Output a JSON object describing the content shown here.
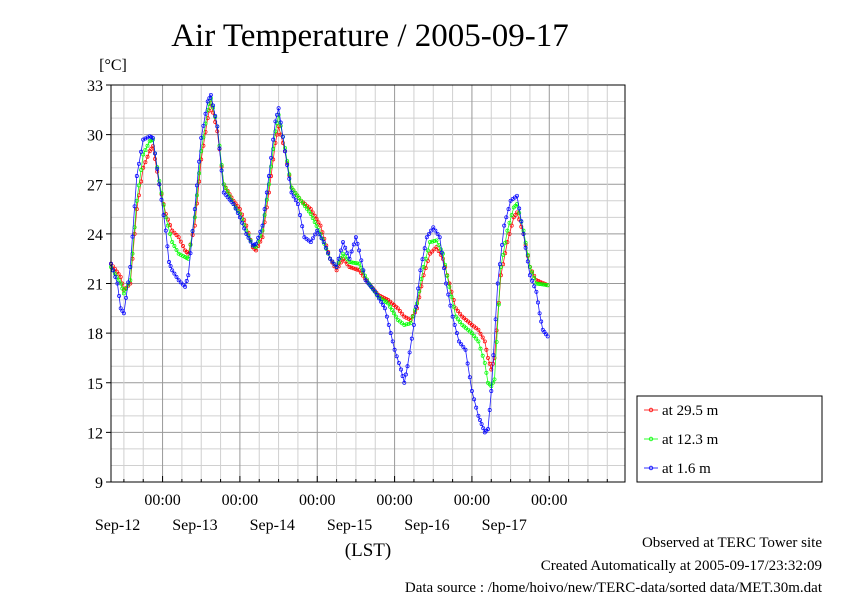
{
  "chart_data": {
    "type": "scatter",
    "title": "Air Temperature / 2005-09-17",
    "ylabel": "[°C]",
    "xlabel": "(LST)",
    "ylim": [
      9,
      33
    ],
    "yticks": [
      9,
      12,
      15,
      18,
      21,
      24,
      27,
      30,
      33
    ],
    "xlim": [
      "2005-09-11T08:00",
      "2005-09-17T23:30"
    ],
    "xticks": [
      {
        "time": "2005-09-12T00:00",
        "time_label": "00:00",
        "date_label": "Sep-12"
      },
      {
        "time": "2005-09-13T00:00",
        "time_label": "00:00",
        "date_label": "Sep-13"
      },
      {
        "time": "2005-09-14T00:00",
        "time_label": "00:00",
        "date_label": "Sep-14"
      },
      {
        "time": "2005-09-15T00:00",
        "time_label": "00:00",
        "date_label": "Sep-15"
      },
      {
        "time": "2005-09-16T00:00",
        "time_label": "00:00",
        "date_label": "Sep-16"
      },
      {
        "time": "2005-09-17T00:00",
        "time_label": "00:00",
        "date_label": "Sep-17"
      }
    ],
    "grid": true,
    "legend_position": "right-bottom",
    "series": [
      {
        "name": "at 29.5 m",
        "color": "#ff0000",
        "points": [
          [
            "2005-09-11T08:00",
            22.2
          ],
          [
            "2005-09-11T11:00",
            21.4
          ],
          [
            "2005-09-11T12:00",
            20.6
          ],
          [
            "2005-09-11T14:00",
            21.0
          ],
          [
            "2005-09-11T16:00",
            25.5
          ],
          [
            "2005-09-11T18:00",
            28.0
          ],
          [
            "2005-09-11T20:00",
            29.0
          ],
          [
            "2005-09-11T21:00",
            29.3
          ],
          [
            "2005-09-11T23:00",
            27.0
          ],
          [
            "2005-09-12T01:00",
            25.2
          ],
          [
            "2005-09-12T03:00",
            24.2
          ],
          [
            "2005-09-12T05:00",
            23.8
          ],
          [
            "2005-09-12T07:00",
            23.0
          ],
          [
            "2005-09-12T08:00",
            22.8
          ],
          [
            "2005-09-12T10:00",
            24.5
          ],
          [
            "2005-09-12T12:00",
            28.5
          ],
          [
            "2005-09-12T14:00",
            31.0
          ],
          [
            "2005-09-12T15:00",
            31.9
          ],
          [
            "2005-09-12T17:00",
            30.2
          ],
          [
            "2005-09-12T19:00",
            27.0
          ],
          [
            "2005-09-12T22:00",
            26.0
          ],
          [
            "2005-09-13T00:00",
            25.5
          ],
          [
            "2005-09-13T02:00",
            24.5
          ],
          [
            "2005-09-13T04:00",
            23.2
          ],
          [
            "2005-09-13T05:00",
            23.0
          ],
          [
            "2005-09-13T07:00",
            23.8
          ],
          [
            "2005-09-13T09:00",
            26.5
          ],
          [
            "2005-09-13T11:00",
            29.5
          ],
          [
            "2005-09-13T12:00",
            30.5
          ],
          [
            "2005-09-13T14:00",
            29.0
          ],
          [
            "2005-09-13T16:00",
            26.8
          ],
          [
            "2005-09-13T19:00",
            26.0
          ],
          [
            "2005-09-13T22:00",
            25.5
          ],
          [
            "2005-09-14T01:00",
            24.5
          ],
          [
            "2005-09-14T04:00",
            22.5
          ],
          [
            "2005-09-14T06:00",
            21.8
          ],
          [
            "2005-09-14T08:00",
            22.5
          ],
          [
            "2005-09-14T10:00",
            22.0
          ],
          [
            "2005-09-14T13:00",
            21.8
          ],
          [
            "2005-09-14T16:00",
            21.0
          ],
          [
            "2005-09-14T19:00",
            20.3
          ],
          [
            "2005-09-14T22:00",
            20.0
          ],
          [
            "2005-09-15T01:00",
            19.5
          ],
          [
            "2005-09-15T03:00",
            19.0
          ],
          [
            "2005-09-15T05:00",
            18.8
          ],
          [
            "2005-09-15T07:00",
            19.5
          ],
          [
            "2005-09-15T09:00",
            21.5
          ],
          [
            "2005-09-15T11:00",
            22.8
          ],
          [
            "2005-09-15T13:00",
            23.2
          ],
          [
            "2005-09-15T15:00",
            22.5
          ],
          [
            "2005-09-15T17:00",
            21.0
          ],
          [
            "2005-09-15T19:00",
            19.5
          ],
          [
            "2005-09-15T21:00",
            19.0
          ],
          [
            "2005-09-16T00:00",
            18.5
          ],
          [
            "2005-09-16T02:00",
            18.2
          ],
          [
            "2005-09-16T04:00",
            17.5
          ],
          [
            "2005-09-16T05:00",
            16.5
          ],
          [
            "2005-09-16T06:00",
            15.8
          ],
          [
            "2005-09-16T07:00",
            16.5
          ],
          [
            "2005-09-16T09:00",
            21.5
          ],
          [
            "2005-09-16T11:00",
            23.5
          ],
          [
            "2005-09-16T13:00",
            25.0
          ],
          [
            "2005-09-16T14:00",
            25.3
          ],
          [
            "2005-09-16T16:00",
            24.0
          ],
          [
            "2005-09-16T18:00",
            22.0
          ],
          [
            "2005-09-16T20:00",
            21.2
          ],
          [
            "2005-09-16T23:30",
            20.9
          ]
        ]
      },
      {
        "name": "at 12.3 m",
        "color": "#00ff00",
        "points": [
          [
            "2005-09-11T08:00",
            22.0
          ],
          [
            "2005-09-11T11:00",
            21.0
          ],
          [
            "2005-09-11T12:00",
            20.4
          ],
          [
            "2005-09-11T14:00",
            21.2
          ],
          [
            "2005-09-11T16:00",
            26.0
          ],
          [
            "2005-09-11T18:00",
            28.8
          ],
          [
            "2005-09-11T20:00",
            29.6
          ],
          [
            "2005-09-11T21:00",
            29.7
          ],
          [
            "2005-09-11T23:00",
            27.2
          ],
          [
            "2005-09-12T01:00",
            25.0
          ],
          [
            "2005-09-12T03:00",
            23.5
          ],
          [
            "2005-09-12T05:00",
            22.8
          ],
          [
            "2005-09-12T07:00",
            22.6
          ],
          [
            "2005-09-12T08:00",
            22.5
          ],
          [
            "2005-09-12T10:00",
            25.0
          ],
          [
            "2005-09-12T12:00",
            29.0
          ],
          [
            "2005-09-12T14:00",
            31.5
          ],
          [
            "2005-09-12T15:00",
            32.2
          ],
          [
            "2005-09-12T17:00",
            30.5
          ],
          [
            "2005-09-12T19:00",
            27.0
          ],
          [
            "2005-09-12T22:00",
            25.8
          ],
          [
            "2005-09-13T00:00",
            25.2
          ],
          [
            "2005-09-13T02:00",
            24.2
          ],
          [
            "2005-09-13T04:00",
            23.3
          ],
          [
            "2005-09-13T05:00",
            23.2
          ],
          [
            "2005-09-13T07:00",
            24.2
          ],
          [
            "2005-09-13T09:00",
            27.0
          ],
          [
            "2005-09-13T11:00",
            30.2
          ],
          [
            "2005-09-13T12:00",
            31.2
          ],
          [
            "2005-09-13T14:00",
            29.2
          ],
          [
            "2005-09-13T16:00",
            26.8
          ],
          [
            "2005-09-13T19:00",
            26.0
          ],
          [
            "2005-09-13T22:00",
            25.2
          ],
          [
            "2005-09-14T01:00",
            24.0
          ],
          [
            "2005-09-14T04:00",
            22.5
          ],
          [
            "2005-09-14T06:00",
            22.0
          ],
          [
            "2005-09-14T08:00",
            22.8
          ],
          [
            "2005-09-14T10:00",
            22.3
          ],
          [
            "2005-09-14T13:00",
            22.2
          ],
          [
            "2005-09-14T16:00",
            21.0
          ],
          [
            "2005-09-14T19:00",
            20.2
          ],
          [
            "2005-09-14T22:00",
            19.8
          ],
          [
            "2005-09-15T01:00",
            18.8
          ],
          [
            "2005-09-15T03:00",
            18.5
          ],
          [
            "2005-09-15T05:00",
            18.6
          ],
          [
            "2005-09-15T07:00",
            19.8
          ],
          [
            "2005-09-15T09:00",
            22.0
          ],
          [
            "2005-09-15T11:00",
            23.5
          ],
          [
            "2005-09-15T13:00",
            23.6
          ],
          [
            "2005-09-15T15:00",
            22.8
          ],
          [
            "2005-09-15T17:00",
            20.8
          ],
          [
            "2005-09-15T19:00",
            19.0
          ],
          [
            "2005-09-15T21:00",
            18.5
          ],
          [
            "2005-09-16T00:00",
            18.0
          ],
          [
            "2005-09-16T02:00",
            17.5
          ],
          [
            "2005-09-16T04:00",
            16.2
          ],
          [
            "2005-09-16T05:00",
            15.0
          ],
          [
            "2005-09-16T06:00",
            14.8
          ],
          [
            "2005-09-16T07:00",
            15.2
          ],
          [
            "2005-09-16T09:00",
            22.0
          ],
          [
            "2005-09-16T11:00",
            24.2
          ],
          [
            "2005-09-16T13:00",
            25.6
          ],
          [
            "2005-09-16T14:00",
            25.8
          ],
          [
            "2005-09-16T16:00",
            24.2
          ],
          [
            "2005-09-16T18:00",
            22.0
          ],
          [
            "2005-09-16T20:00",
            21.0
          ],
          [
            "2005-09-16T23:30",
            20.9
          ]
        ]
      },
      {
        "name": "at 1.6 m",
        "color": "#0000ff",
        "points": [
          [
            "2005-09-11T08:00",
            22.2
          ],
          [
            "2005-09-11T10:00",
            21.0
          ],
          [
            "2005-09-11T11:00",
            19.5
          ],
          [
            "2005-09-11T12:00",
            19.2
          ],
          [
            "2005-09-11T14:00",
            22.0
          ],
          [
            "2005-09-11T16:00",
            27.5
          ],
          [
            "2005-09-11T18:00",
            29.7
          ],
          [
            "2005-09-11T20:00",
            29.9
          ],
          [
            "2005-09-11T21:00",
            29.8
          ],
          [
            "2005-09-11T23:00",
            27.0
          ],
          [
            "2005-09-12T01:00",
            24.2
          ],
          [
            "2005-09-12T02:00",
            22.3
          ],
          [
            "2005-09-12T03:00",
            21.8
          ],
          [
            "2005-09-12T05:00",
            21.2
          ],
          [
            "2005-09-12T07:00",
            20.8
          ],
          [
            "2005-09-12T08:00",
            21.5
          ],
          [
            "2005-09-12T10:00",
            25.5
          ],
          [
            "2005-09-12T12:00",
            29.8
          ],
          [
            "2005-09-12T14:00",
            32.0
          ],
          [
            "2005-09-12T15:00",
            32.4
          ],
          [
            "2005-09-12T17:00",
            30.5
          ],
          [
            "2005-09-12T19:00",
            26.5
          ],
          [
            "2005-09-12T22:00",
            25.8
          ],
          [
            "2005-09-13T00:00",
            25.0
          ],
          [
            "2005-09-13T02:00",
            24.0
          ],
          [
            "2005-09-13T04:00",
            23.3
          ],
          [
            "2005-09-13T05:00",
            23.4
          ],
          [
            "2005-09-13T07:00",
            24.5
          ],
          [
            "2005-09-13T09:00",
            27.5
          ],
          [
            "2005-09-13T11:00",
            30.8
          ],
          [
            "2005-09-13T12:00",
            31.6
          ],
          [
            "2005-09-13T14:00",
            29.0
          ],
          [
            "2005-09-13T16:00",
            26.5
          ],
          [
            "2005-09-13T18:00",
            25.8
          ],
          [
            "2005-09-13T20:00",
            23.8
          ],
          [
            "2005-09-13T22:00",
            23.5
          ],
          [
            "2005-09-14T00:00",
            24.2
          ],
          [
            "2005-09-14T02:00",
            23.5
          ],
          [
            "2005-09-14T04:00",
            22.5
          ],
          [
            "2005-09-14T06:00",
            22.0
          ],
          [
            "2005-09-14T08:00",
            23.5
          ],
          [
            "2005-09-14T10:00",
            22.5
          ],
          [
            "2005-09-14T12:00",
            23.8
          ],
          [
            "2005-09-14T13:00",
            23.0
          ],
          [
            "2005-09-14T15:00",
            21.2
          ],
          [
            "2005-09-14T18:00",
            20.5
          ],
          [
            "2005-09-14T21:00",
            19.5
          ],
          [
            "2005-09-15T00:00",
            17.0
          ],
          [
            "2005-09-15T02:00",
            15.8
          ],
          [
            "2005-09-15T03:00",
            15.0
          ],
          [
            "2005-09-15T04:00",
            16.0
          ],
          [
            "2005-09-15T06:00",
            18.5
          ],
          [
            "2005-09-15T08:00",
            21.8
          ],
          [
            "2005-09-15T10:00",
            23.8
          ],
          [
            "2005-09-15T12:00",
            24.4
          ],
          [
            "2005-09-15T14:00",
            23.8
          ],
          [
            "2005-09-15T16:00",
            21.0
          ],
          [
            "2005-09-15T18:00",
            19.0
          ],
          [
            "2005-09-15T20:00",
            17.5
          ],
          [
            "2005-09-15T22:00",
            17.0
          ],
          [
            "2005-09-16T00:00",
            14.5
          ],
          [
            "2005-09-16T02:00",
            13.0
          ],
          [
            "2005-09-16T03:00",
            12.5
          ],
          [
            "2005-09-16T04:00",
            12.0
          ],
          [
            "2005-09-16T05:00",
            12.2
          ],
          [
            "2005-09-16T06:00",
            14.5
          ],
          [
            "2005-09-16T08:00",
            21.0
          ],
          [
            "2005-09-16T10:00",
            24.5
          ],
          [
            "2005-09-16T12:00",
            26.0
          ],
          [
            "2005-09-16T14:00",
            26.3
          ],
          [
            "2005-09-16T16:00",
            24.0
          ],
          [
            "2005-09-16T18:00",
            21.5
          ],
          [
            "2005-09-16T20:00",
            20.5
          ],
          [
            "2005-09-16T21:00",
            19.2
          ],
          [
            "2005-09-16T22:00",
            18.2
          ],
          [
            "2005-09-16T23:30",
            17.8
          ]
        ]
      }
    ]
  },
  "footer": {
    "site": "Observed at TERC Tower site",
    "created": "Created Automatically at 2005-09-17/23:32:09",
    "source": "Data source : /home/hoivo/new/TERC-data/sorted  data/MET.30m.dat"
  }
}
